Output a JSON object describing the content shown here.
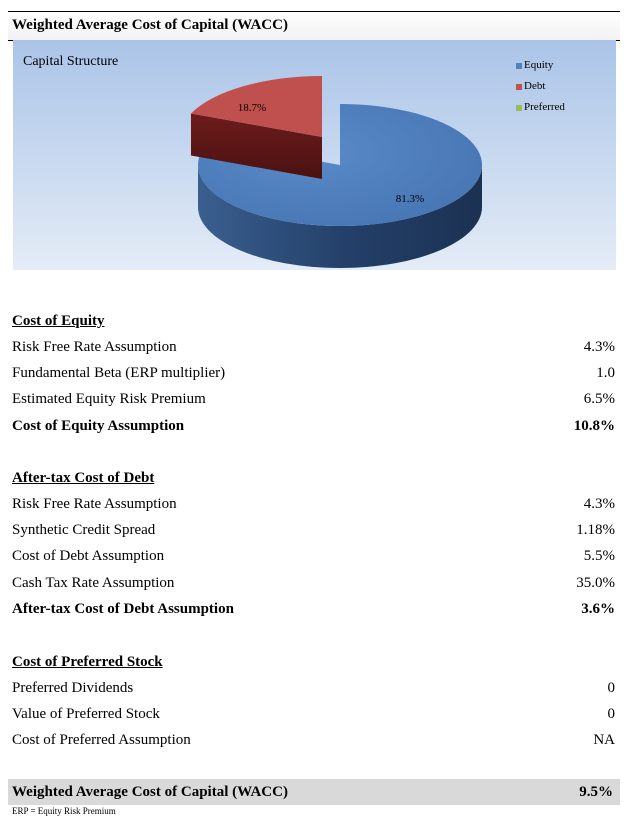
{
  "header": {
    "title": "Weighted Average Cost of Capital (WACC)"
  },
  "chart_data": {
    "type": "pie",
    "title": "Capital Structure",
    "slices": [
      {
        "name": "Equity",
        "value": 81.3,
        "label": "81.3%",
        "color": "#4f81bd"
      },
      {
        "name": "Debt",
        "value": 18.7,
        "label": "18.7%",
        "color": "#c0504d"
      },
      {
        "name": "Preferred",
        "value": 0,
        "label": "",
        "color": "#9bbb59"
      }
    ],
    "legend": "right"
  },
  "sections": {
    "equity": {
      "title": "Cost of Equity",
      "rows": [
        {
          "label": "Risk Free Rate Assumption",
          "value": "4.3%"
        },
        {
          "label": "Fundamental Beta (ERP multiplier)",
          "value": "1.0"
        },
        {
          "label": "Estimated Equity Risk Premium",
          "value": "6.5%"
        },
        {
          "label": "Cost of Equity Assumption",
          "value": "10.8%"
        }
      ]
    },
    "debt": {
      "title": "After-tax Cost of Debt",
      "rows": [
        {
          "label": "Risk Free Rate Assumption",
          "value": "4.3%"
        },
        {
          "label": "Synthetic Credit Spread",
          "value": "1.18%"
        },
        {
          "label": "Cost of Debt Assumption",
          "value": "5.5%"
        },
        {
          "label": "Cash Tax Rate Assumption",
          "value": "35.0%"
        },
        {
          "label": "After-tax Cost of Debt Assumption",
          "value": "3.6%"
        }
      ]
    },
    "preferred": {
      "title": "Cost of Preferred Stock",
      "rows": [
        {
          "label": "Preferred Dividends",
          "value": "0"
        },
        {
          "label": "Value of Preferred Stock",
          "value": "0"
        },
        {
          "label": "Cost of Preferred Assumption",
          "value": "NA"
        }
      ]
    }
  },
  "wacc": {
    "label": "Weighted Average Cost of Capital (WACC)",
    "value": "9.5%"
  },
  "footnote": "ERP = Equity Risk Premium"
}
